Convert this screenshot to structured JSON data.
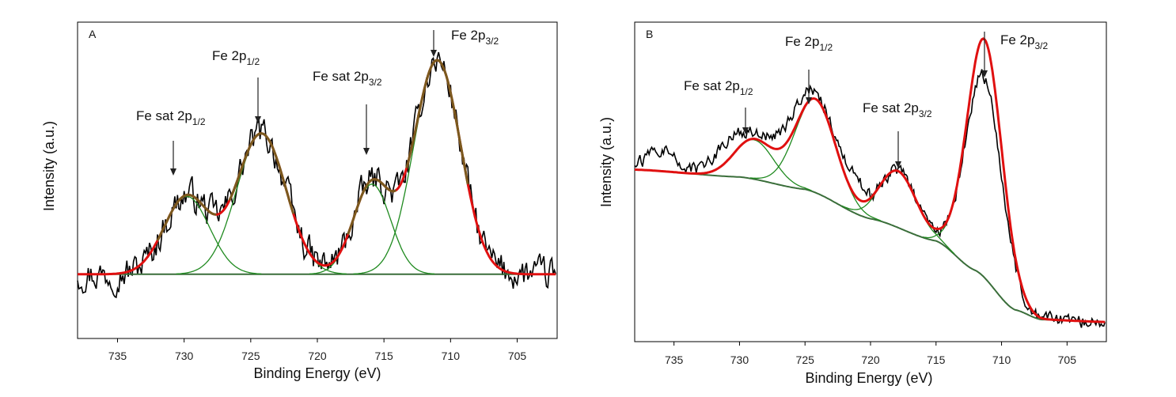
{
  "chart_data": [
    {
      "type": "line",
      "panel_label": "A",
      "xlabel": "Binding Energy (eV)",
      "ylabel": "Intensity (a.u.)",
      "xlim": [
        738,
        702
      ],
      "x_reversed": true,
      "xticks": [
        735,
        730,
        725,
        720,
        715,
        710,
        705
      ],
      "ylim": [
        -0.42,
        1.65
      ],
      "baseline": 0.0,
      "peaks": [
        {
          "label_main": "Fe 2p",
          "label_sub": "3/2",
          "prefix": "",
          "center": 711.0,
          "height": 1.4,
          "sigma": 1.75
        },
        {
          "label_main": "Fe 2p",
          "label_sub": "1/2",
          "prefix": "",
          "center": 724.2,
          "height": 0.92,
          "sigma": 1.85
        },
        {
          "label_main": "Fe sat 2p",
          "label_sub": "3/2",
          "prefix": "",
          "center": 715.9,
          "height": 0.59,
          "sigma": 1.4
        },
        {
          "label_main": "Fe sat 2p",
          "label_sub": "1/2",
          "prefix": "",
          "center": 729.8,
          "height": 0.51,
          "sigma": 1.7
        }
      ],
      "raw_noise_amplitude": 0.12,
      "series": []
    },
    {
      "type": "line",
      "panel_label": "B",
      "xlabel": "Binding Energy (eV)",
      "ylabel": "Intensity (a.u.)",
      "xlim": [
        738,
        702
      ],
      "x_reversed": true,
      "xticks": [
        735,
        730,
        725,
        720,
        715,
        710,
        705
      ],
      "ylim": [
        -0.05,
        1.25
      ],
      "background_points": [
        [
          738,
          0.65
        ],
        [
          730,
          0.62
        ],
        [
          725,
          0.57
        ],
        [
          720,
          0.45
        ],
        [
          715,
          0.36
        ],
        [
          712,
          0.24
        ],
        [
          709,
          0.08
        ],
        [
          707,
          0.04
        ],
        [
          702,
          0.03
        ]
      ],
      "peaks": [
        {
          "label_main": "Fe 2p",
          "label_sub": "3/2",
          "prefix": "",
          "center": 711.3,
          "height": 0.97,
          "sigma": 1.35
        },
        {
          "label_main": "Fe 2p",
          "label_sub": "1/2",
          "prefix": "",
          "center": 724.2,
          "height": 0.38,
          "sigma": 1.55
        },
        {
          "label_main": "Fe sat 2p",
          "label_sub": "3/2",
          "prefix": "",
          "center": 717.9,
          "height": 0.23,
          "sigma": 1.4
        },
        {
          "label_main": "Fe sat 2p",
          "label_sub": "1/2",
          "prefix": "",
          "center": 728.9,
          "height": 0.16,
          "sigma": 1.5
        }
      ],
      "raw_noise_amplitude": 0.03,
      "series": []
    }
  ],
  "colors": {
    "raw": "#000000",
    "envelope": "#e01010",
    "component": "#1f8a1f",
    "background": "#3a6e3a",
    "envelope_A": "#7a5a1e"
  }
}
